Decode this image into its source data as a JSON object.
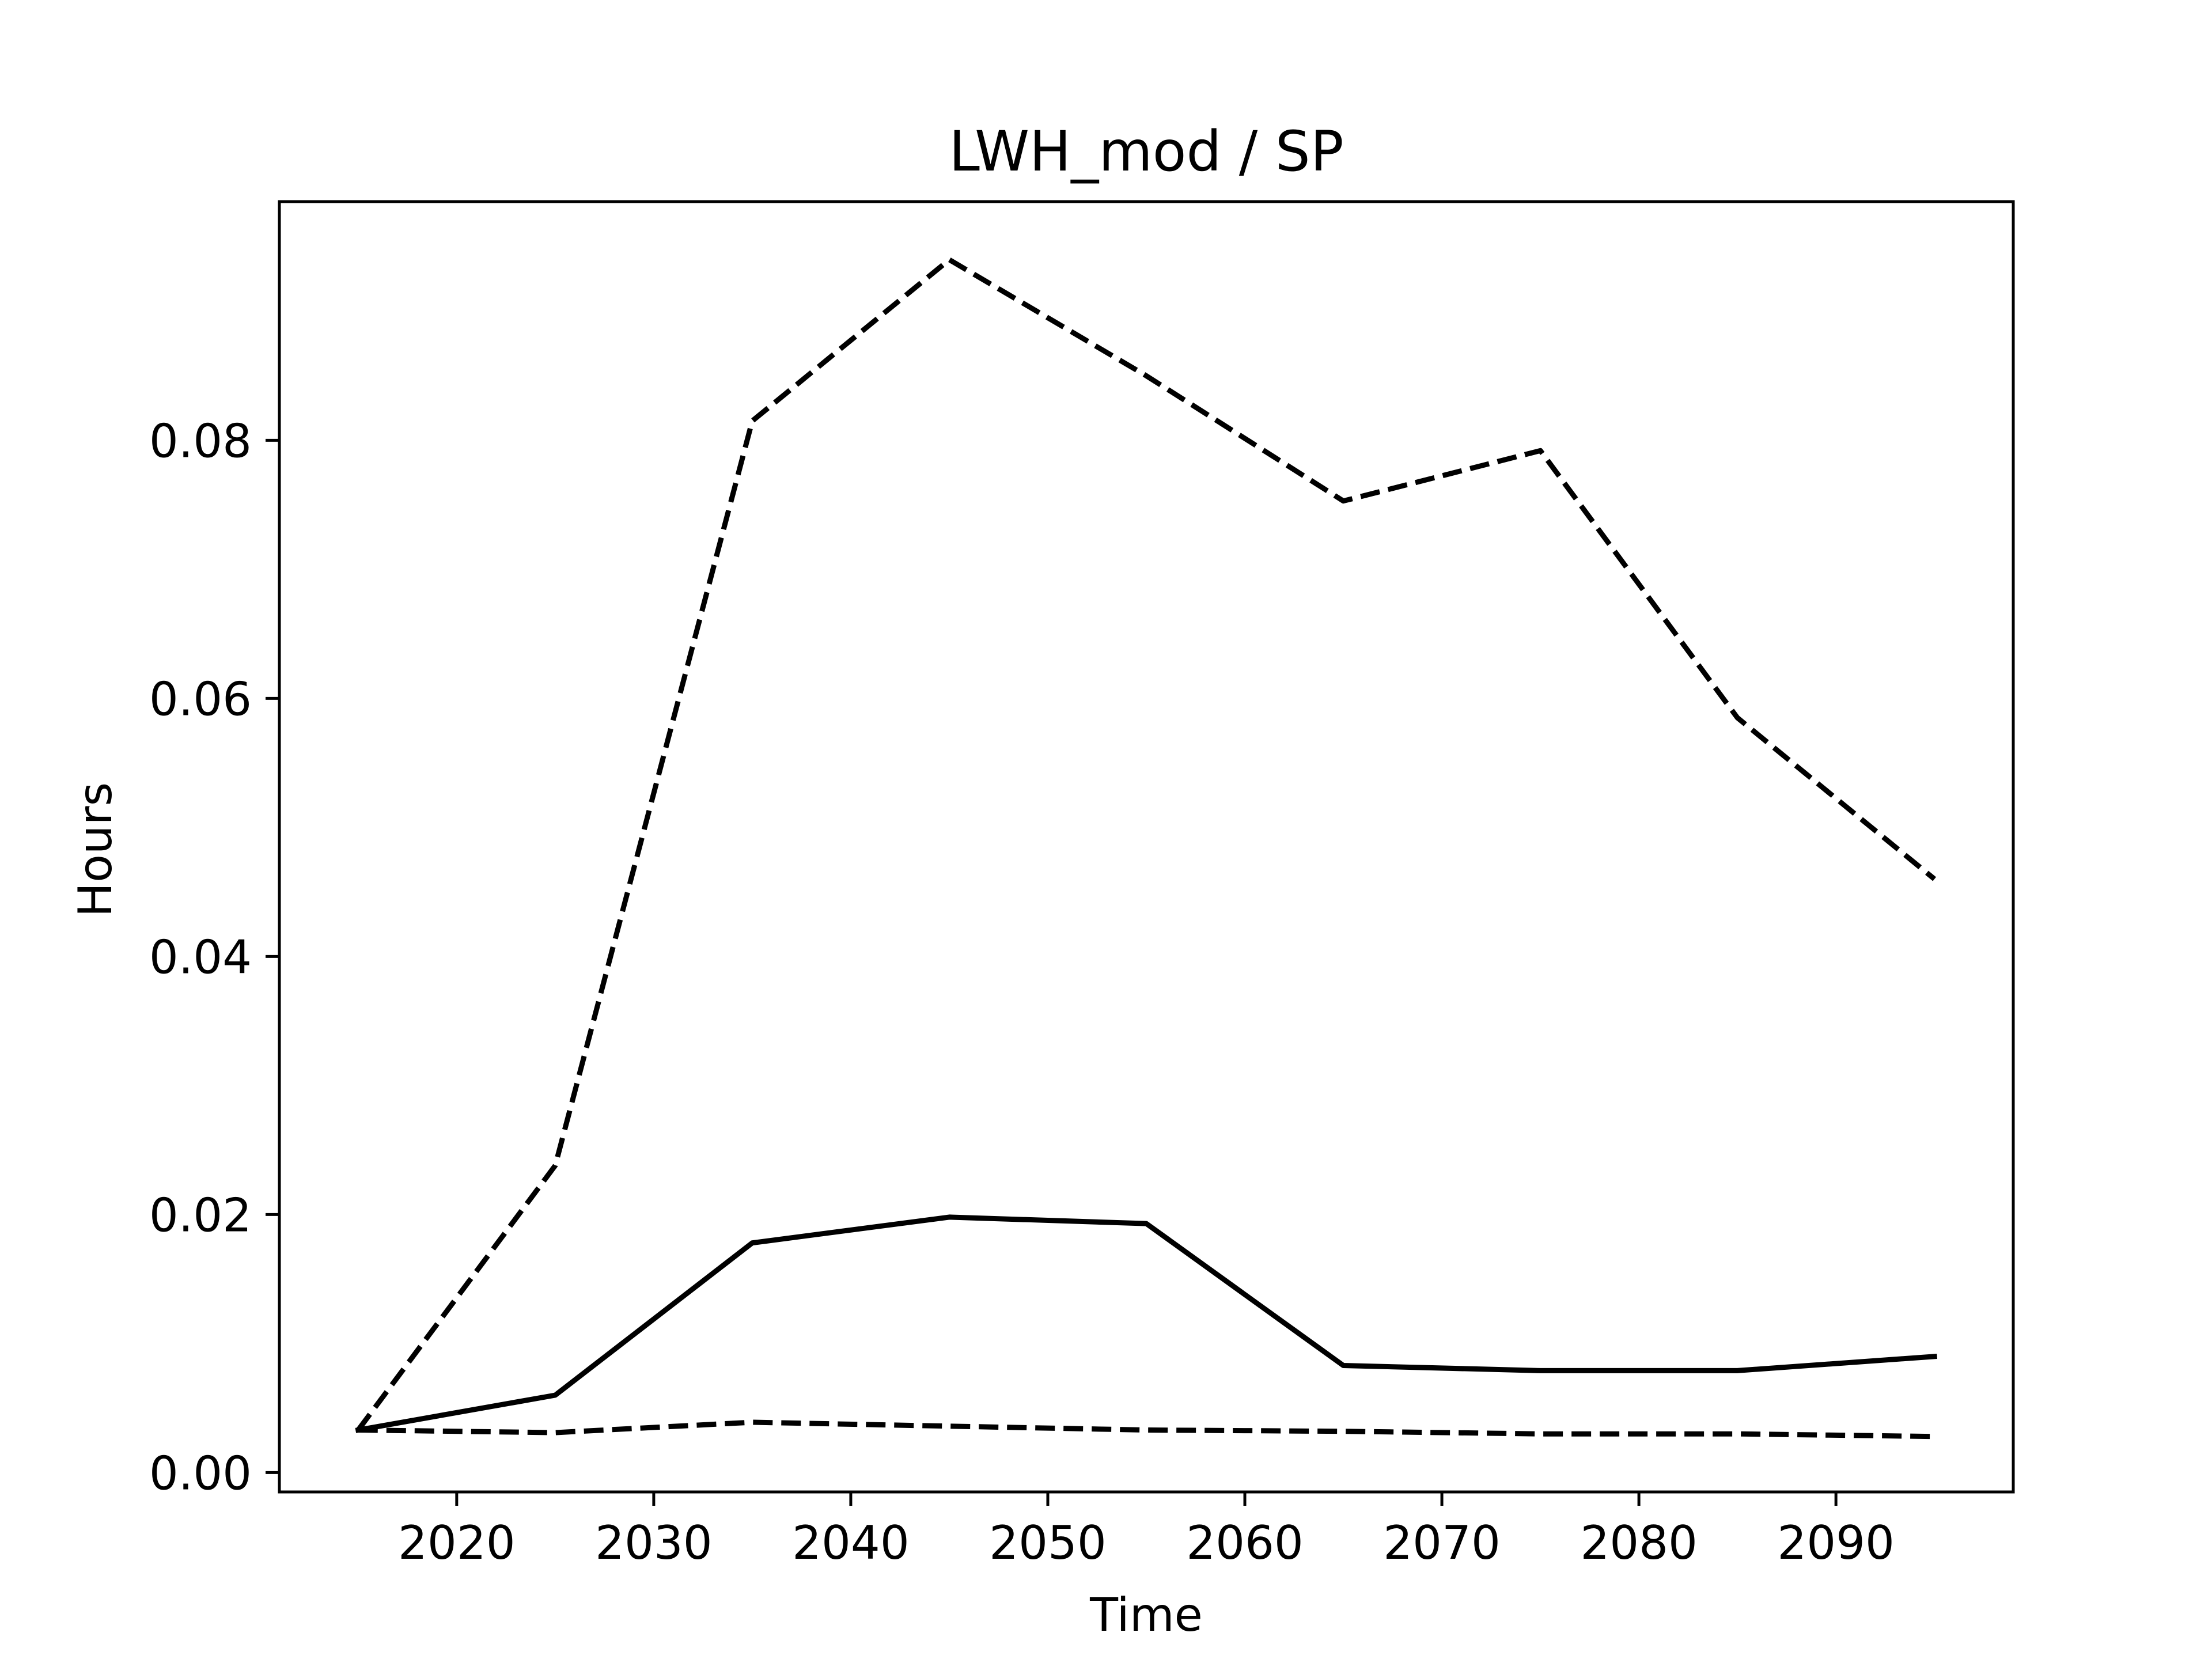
{
  "chart_data": {
    "type": "line",
    "title": "LWH_mod / SP",
    "xlabel": "Time",
    "ylabel": "Hours",
    "xlim": [
      2011,
      2099
    ],
    "ylim": [
      -0.0015,
      0.0985
    ],
    "xticks": [
      2020,
      2030,
      2040,
      2050,
      2060,
      2070,
      2080,
      2090
    ],
    "xtick_labels": [
      "2020",
      "2030",
      "2040",
      "2050",
      "2060",
      "2070",
      "2080",
      "2090"
    ],
    "yticks": [
      0.0,
      0.02,
      0.04,
      0.06,
      0.08
    ],
    "ytick_labels": [
      "0.00",
      "0.02",
      "0.04",
      "0.06",
      "0.08"
    ],
    "grid": false,
    "x": [
      2015,
      2025,
      2035,
      2045,
      2055,
      2065,
      2075,
      2085,
      2095
    ],
    "series": [
      {
        "values": [
          0.0033,
          0.0238,
          0.0815,
          0.094,
          0.085,
          0.0753,
          0.0792,
          0.0585,
          0.046
        ],
        "style": "dashed",
        "color": "#000000"
      },
      {
        "values": [
          0.0033,
          0.006,
          0.0178,
          0.0198,
          0.0193,
          0.0083,
          0.0079,
          0.0079,
          0.009
        ],
        "style": "solid",
        "color": "#000000"
      },
      {
        "values": [
          0.0033,
          0.0031,
          0.0039,
          0.0036,
          0.0033,
          0.0032,
          0.003,
          0.003,
          0.0028
        ],
        "style": "dashed",
        "color": "#000000"
      }
    ]
  }
}
